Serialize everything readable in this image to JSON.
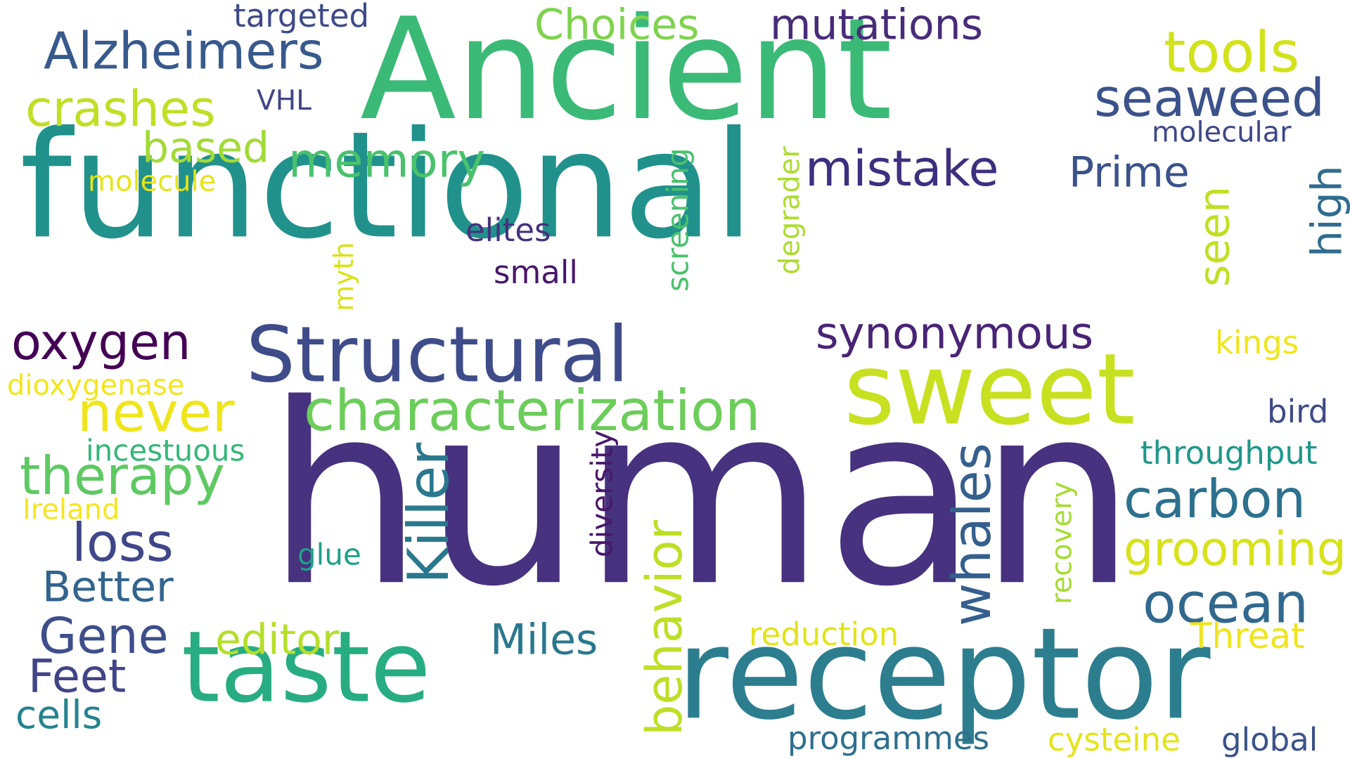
{
  "words": [
    {
      "text": "human",
      "color": "#46327e",
      "vertical": false
    },
    {
      "text": "functional",
      "color": "#21918c",
      "vertical": false
    },
    {
      "text": "Ancient",
      "color": "#3aba76",
      "vertical": false
    },
    {
      "text": "receptor",
      "color": "#2c7e8e",
      "vertical": false
    },
    {
      "text": "taste",
      "color": "#27ad81",
      "vertical": false
    },
    {
      "text": "sweet",
      "color": "#c7e020",
      "vertical": false
    },
    {
      "text": "Structural",
      "color": "#3e4c8a",
      "vertical": false
    },
    {
      "text": "characterization",
      "color": "#6ccd5a",
      "vertical": false
    },
    {
      "text": "Killer",
      "color": "#2a788e",
      "vertical": true
    },
    {
      "text": "whales",
      "color": "#355f8d",
      "vertical": true
    },
    {
      "text": "behavior",
      "color": "#bddf26",
      "vertical": true
    },
    {
      "text": "memory",
      "color": "#4ac16d",
      "vertical": false
    },
    {
      "text": "mistake",
      "color": "#3e2f7f",
      "vertical": false
    },
    {
      "text": "therapy",
      "color": "#5ec962",
      "vertical": false
    },
    {
      "text": "oxygen",
      "color": "#440154",
      "vertical": false
    },
    {
      "text": "carbon",
      "color": "#2c718e",
      "vertical": false
    },
    {
      "text": "ocean",
      "color": "#31688e",
      "vertical": false
    },
    {
      "text": "grooming",
      "color": "#d8e219",
      "vertical": false
    },
    {
      "text": "seaweed",
      "color": "#3b528b",
      "vertical": false
    },
    {
      "text": "mutations",
      "color": "#472c7a",
      "vertical": false
    },
    {
      "text": "Alzheimers",
      "color": "#38598c",
      "vertical": false
    },
    {
      "text": "crashes",
      "color": "#c0df25",
      "vertical": false
    },
    {
      "text": "tools",
      "color": "#d2e21b",
      "vertical": false
    },
    {
      "text": "Choices",
      "color": "#7fd34e",
      "vertical": false
    },
    {
      "text": "never",
      "color": "#efe51c",
      "vertical": false
    },
    {
      "text": "loss",
      "color": "#3f4788",
      "vertical": false
    },
    {
      "text": "Gene",
      "color": "#3d4e8a",
      "vertical": false
    },
    {
      "text": "Better",
      "color": "#32648e",
      "vertical": false
    },
    {
      "text": "Feet",
      "color": "#414487",
      "vertical": false
    },
    {
      "text": "cells",
      "color": "#25838e",
      "vertical": false
    },
    {
      "text": "editor",
      "color": "#b5de2b",
      "vertical": false
    },
    {
      "text": "Miles",
      "color": "#2a788e",
      "vertical": false
    },
    {
      "text": "synonymous",
      "color": "#482475",
      "vertical": false
    },
    {
      "text": "Prime",
      "color": "#3b528b",
      "vertical": false
    },
    {
      "text": "seen",
      "color": "#c2df23",
      "vertical": true
    },
    {
      "text": "high",
      "color": "#2f6c8e",
      "vertical": true
    },
    {
      "text": "based",
      "color": "#a2da37",
      "vertical": false
    },
    {
      "text": "screening",
      "color": "#4ac16d",
      "vertical": true
    },
    {
      "text": "degrader",
      "color": "#addc30",
      "vertical": true
    },
    {
      "text": "diversity",
      "color": "#48186a",
      "vertical": true
    },
    {
      "text": "recovery",
      "color": "#a8db34",
      "vertical": true
    },
    {
      "text": "myth",
      "color": "#d8e219",
      "vertical": true
    },
    {
      "text": "programmes",
      "color": "#2e6f8e",
      "vertical": false
    },
    {
      "text": "cysteine",
      "color": "#e5e419",
      "vertical": false
    },
    {
      "text": "global",
      "color": "#3b528b",
      "vertical": false
    },
    {
      "text": "reduction",
      "color": "#e2e418",
      "vertical": false
    },
    {
      "text": "Threat",
      "color": "#efe51c",
      "vertical": false
    },
    {
      "text": "throughput",
      "color": "#1f988b",
      "vertical": false
    },
    {
      "text": "bird",
      "color": "#3e4a89",
      "vertical": false
    },
    {
      "text": "kings",
      "color": "#f1e51d",
      "vertical": false
    },
    {
      "text": "molecular",
      "color": "#3f4788",
      "vertical": false
    },
    {
      "text": "targeted",
      "color": "#3e4a89",
      "vertical": false
    },
    {
      "text": "VHL",
      "color": "#414487",
      "vertical": false
    },
    {
      "text": "molecule",
      "color": "#e7e419",
      "vertical": false
    },
    {
      "text": "elites",
      "color": "#46327e",
      "vertical": false
    },
    {
      "text": "small",
      "color": "#481769",
      "vertical": false
    },
    {
      "text": "dioxygenase",
      "color": "#f3e61e",
      "vertical": false
    },
    {
      "text": "incestuous",
      "color": "#35b779",
      "vertical": false
    },
    {
      "text": "Ireland",
      "color": "#f6e620",
      "vertical": false
    },
    {
      "text": "glue",
      "color": "#1fa188",
      "vertical": false
    }
  ]
}
